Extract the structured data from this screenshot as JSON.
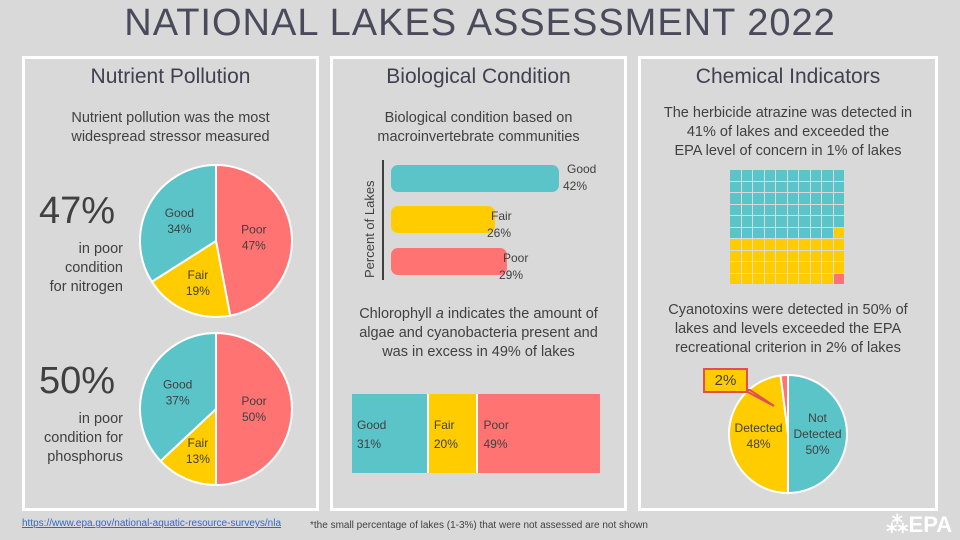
{
  "title": "NATIONAL LAKES ASSESSMENT 2022",
  "colors": {
    "good": "#5bc4c9",
    "fair": "#ffcc00",
    "poor": "#ff7373",
    "missing": "#ff7373"
  },
  "nutrient": {
    "heading": "Nutrient Pollution",
    "desc": "Nutrient pollution was the most widespread stressor measured",
    "nitrogen": {
      "pct": "47%",
      "cap1": "in poor",
      "cap2": "condition",
      "cap3": "for nitrogen"
    },
    "phosphorus": {
      "pct": "50%",
      "cap1": "in poor",
      "cap2": "condition for",
      "cap3": "phosphorus"
    }
  },
  "biological": {
    "heading": "Biological Condition",
    "desc1": "Biological condition based on",
    "desc2": "macroinvertebrate communities",
    "ylabel": "Percent of Lakes",
    "chl_pre": "Chlorophyll ",
    "chl_italic": "a",
    "chl_post": " indicates the amount of",
    "chl2": "algae and cyanobacteria present and",
    "chl3": "was in excess in 49% of lakes"
  },
  "chemical": {
    "heading": "Chemical Indicators",
    "desc1": "The herbicide atrazine was detected in",
    "desc2": "41% of lakes and exceeded the",
    "desc3": "EPA level of concern in 1% of lakes",
    "cyano1": "Cyanotoxins were detected in 50% of",
    "cyano2": "lakes and levels exceeded the EPA",
    "cyano3": "recreational criterion in 2% of lakes",
    "callout": "2%",
    "waffle": {
      "total": 100,
      "teal": 59,
      "yellow": 40,
      "red": 1
    }
  },
  "footer": {
    "link": "https://www.epa.gov/national-aquatic-resource-surveys/nla",
    "note": "*the small percentage of lakes (1-3%) that were not assessed are not shown",
    "logo": "EPA"
  },
  "chart_data": [
    {
      "type": "pie",
      "title": "",
      "categories": [
        "Good",
        "Fair",
        "Poor"
      ],
      "values": [
        34,
        19,
        47
      ]
    },
    {
      "type": "pie",
      "title": "",
      "categories": [
        "Good",
        "Fair",
        "Poor"
      ],
      "values": [
        37,
        13,
        50
      ]
    },
    {
      "type": "bar",
      "title": "",
      "ylabel": "Percent of Lakes",
      "categories": [
        "Good",
        "Fair",
        "Poor"
      ],
      "values": [
        42,
        26,
        29
      ]
    },
    {
      "type": "bar",
      "title": "",
      "categories": [
        "Good",
        "Fair",
        "Poor"
      ],
      "values": [
        31,
        20,
        49
      ]
    },
    {
      "type": "pie",
      "title": "",
      "categories": [
        "Not Detected",
        "Detected",
        ""
      ],
      "values": [
        50,
        48,
        2
      ]
    }
  ]
}
